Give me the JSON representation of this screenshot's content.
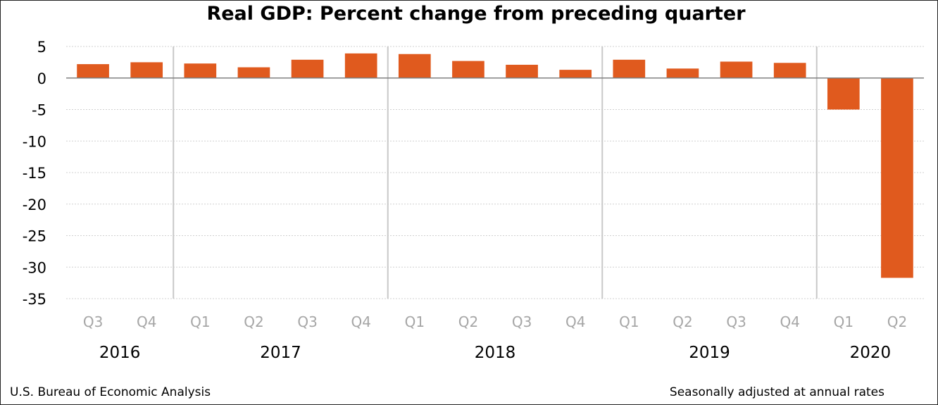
{
  "chart_data": {
    "type": "bar",
    "title": "Real GDP:  Percent change from preceding quarter",
    "categories": [
      "Q3",
      "Q4",
      "Q1",
      "Q2",
      "Q3",
      "Q4",
      "Q1",
      "Q2",
      "Q3",
      "Q4",
      "Q1",
      "Q2",
      "Q3",
      "Q4",
      "Q1",
      "Q2"
    ],
    "year_groups": [
      {
        "label": "2016",
        "count": 2
      },
      {
        "label": "2017",
        "count": 4
      },
      {
        "label": "2018",
        "count": 4
      },
      {
        "label": "2019",
        "count": 4
      },
      {
        "label": "2020",
        "count": 2
      }
    ],
    "series": [
      {
        "values": [
          2.2,
          2.5,
          2.3,
          1.7,
          2.9,
          3.9,
          3.8,
          2.7,
          2.1,
          1.3,
          2.9,
          1.5,
          2.6,
          2.4,
          -5.0,
          -31.7
        ]
      }
    ],
    "ylim": [
      -35,
      5
    ],
    "yticks": [
      5,
      0,
      -5,
      -10,
      -15,
      -20,
      -25,
      -30,
      -35
    ],
    "grid": true,
    "bar_color": "#e05a1e",
    "xlabel": "",
    "ylabel": ""
  },
  "footer": {
    "source": "U.S. Bureau of Economic Analysis",
    "note": "Seasonally adjusted at annual rates"
  }
}
